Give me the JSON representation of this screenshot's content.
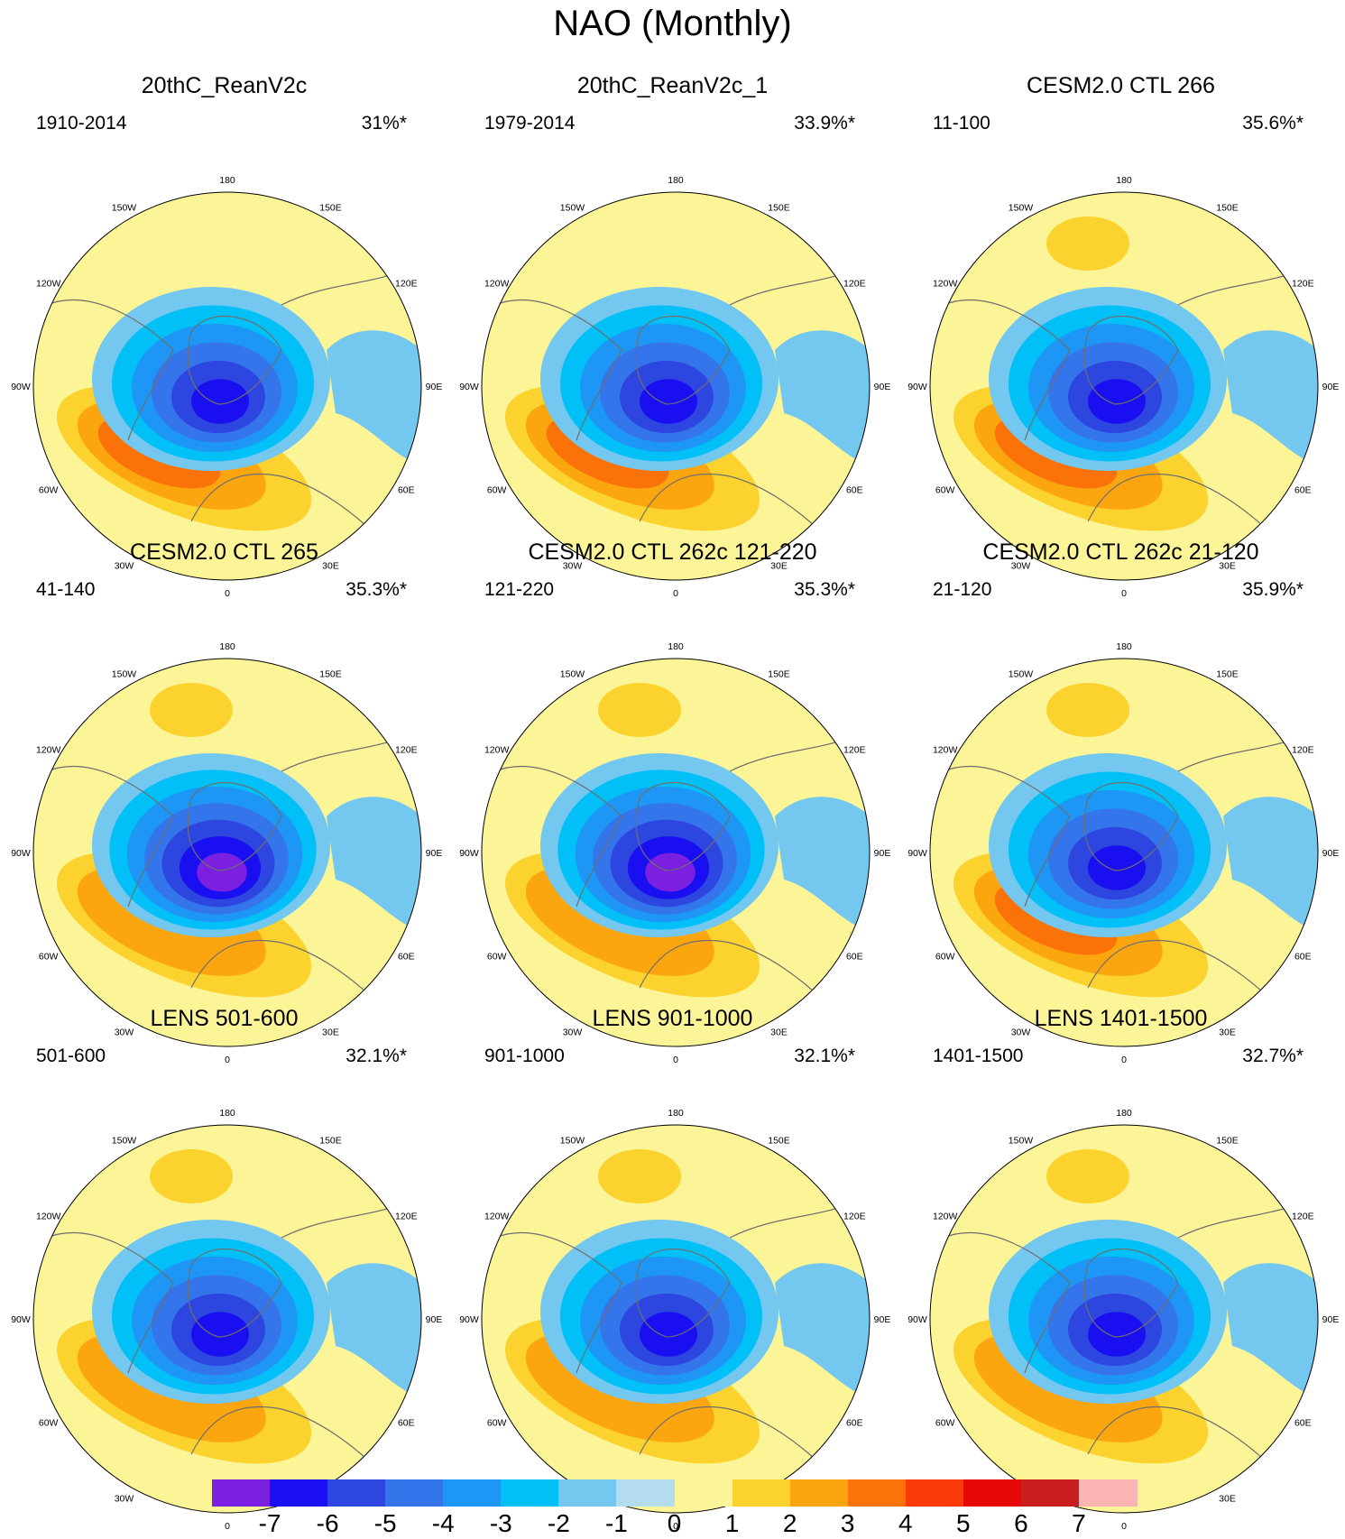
{
  "figure": {
    "title": "NAO (Monthly)",
    "longitude_labels": [
      "180",
      "150E",
      "120E",
      "90E",
      "60E",
      "30E",
      "0",
      "30W",
      "60W",
      "90W",
      "120W",
      "150W"
    ],
    "panels": [
      {
        "title": "20thC_ReanV2c",
        "period": "1910-2014",
        "variance": "31%*",
        "pos_max": 4,
        "neg_min": -6,
        "pacific_pos": false
      },
      {
        "title": "20thC_ReanV2c_1",
        "period": "1979-2014",
        "variance": "33.9%*",
        "pos_max": 4,
        "neg_min": -6,
        "pacific_pos": false
      },
      {
        "title": "CESM2.0 CTL 266",
        "period": "11-100",
        "variance": "35.6%*",
        "pos_max": 4,
        "neg_min": -6,
        "pacific_pos": true
      },
      {
        "title": "CESM2.0 CTL 265",
        "period": "41-140",
        "variance": "35.3%*",
        "pos_max": 3,
        "neg_min": -7,
        "pacific_pos": true
      },
      {
        "title": "CESM2.0 CTL 262c 121-220",
        "period": "121-220",
        "variance": "35.3%*",
        "pos_max": 3,
        "neg_min": -7,
        "pacific_pos": true
      },
      {
        "title": "CESM2.0 CTL 262c 21-120",
        "period": "21-120",
        "variance": "35.9%*",
        "pos_max": 4,
        "neg_min": -6,
        "pacific_pos": true
      },
      {
        "title": "LENS 501-600",
        "period": "501-600",
        "variance": "32.1%*",
        "pos_max": 3,
        "neg_min": -6,
        "pacific_pos": true
      },
      {
        "title": "LENS 901-1000",
        "period": "901-1000",
        "variance": "32.1%*",
        "pos_max": 3,
        "neg_min": -6,
        "pacific_pos": true
      },
      {
        "title": "LENS 1401-1500",
        "period": "1401-1500",
        "variance": "32.7%*",
        "pos_max": 3,
        "neg_min": -6,
        "pacific_pos": true
      }
    ]
  },
  "colorbar": {
    "colors": [
      "#7b1fe0",
      "#1a0ff0",
      "#2e46e0",
      "#3575ec",
      "#1e96f5",
      "#00c0f7",
      "#74c7ef",
      "#b3dcf0",
      "#fbf597",
      "#fcd22e",
      "#fba50f",
      "#fa7208",
      "#fb3c0a",
      "#e80809",
      "#c81e1e",
      "#fab4b4"
    ],
    "tick_labels": [
      "-7",
      "-6",
      "-5",
      "-4",
      "-3",
      "-2",
      "-1",
      "0",
      "1",
      "2",
      "3",
      "4",
      "5",
      "6",
      "7"
    ]
  }
}
